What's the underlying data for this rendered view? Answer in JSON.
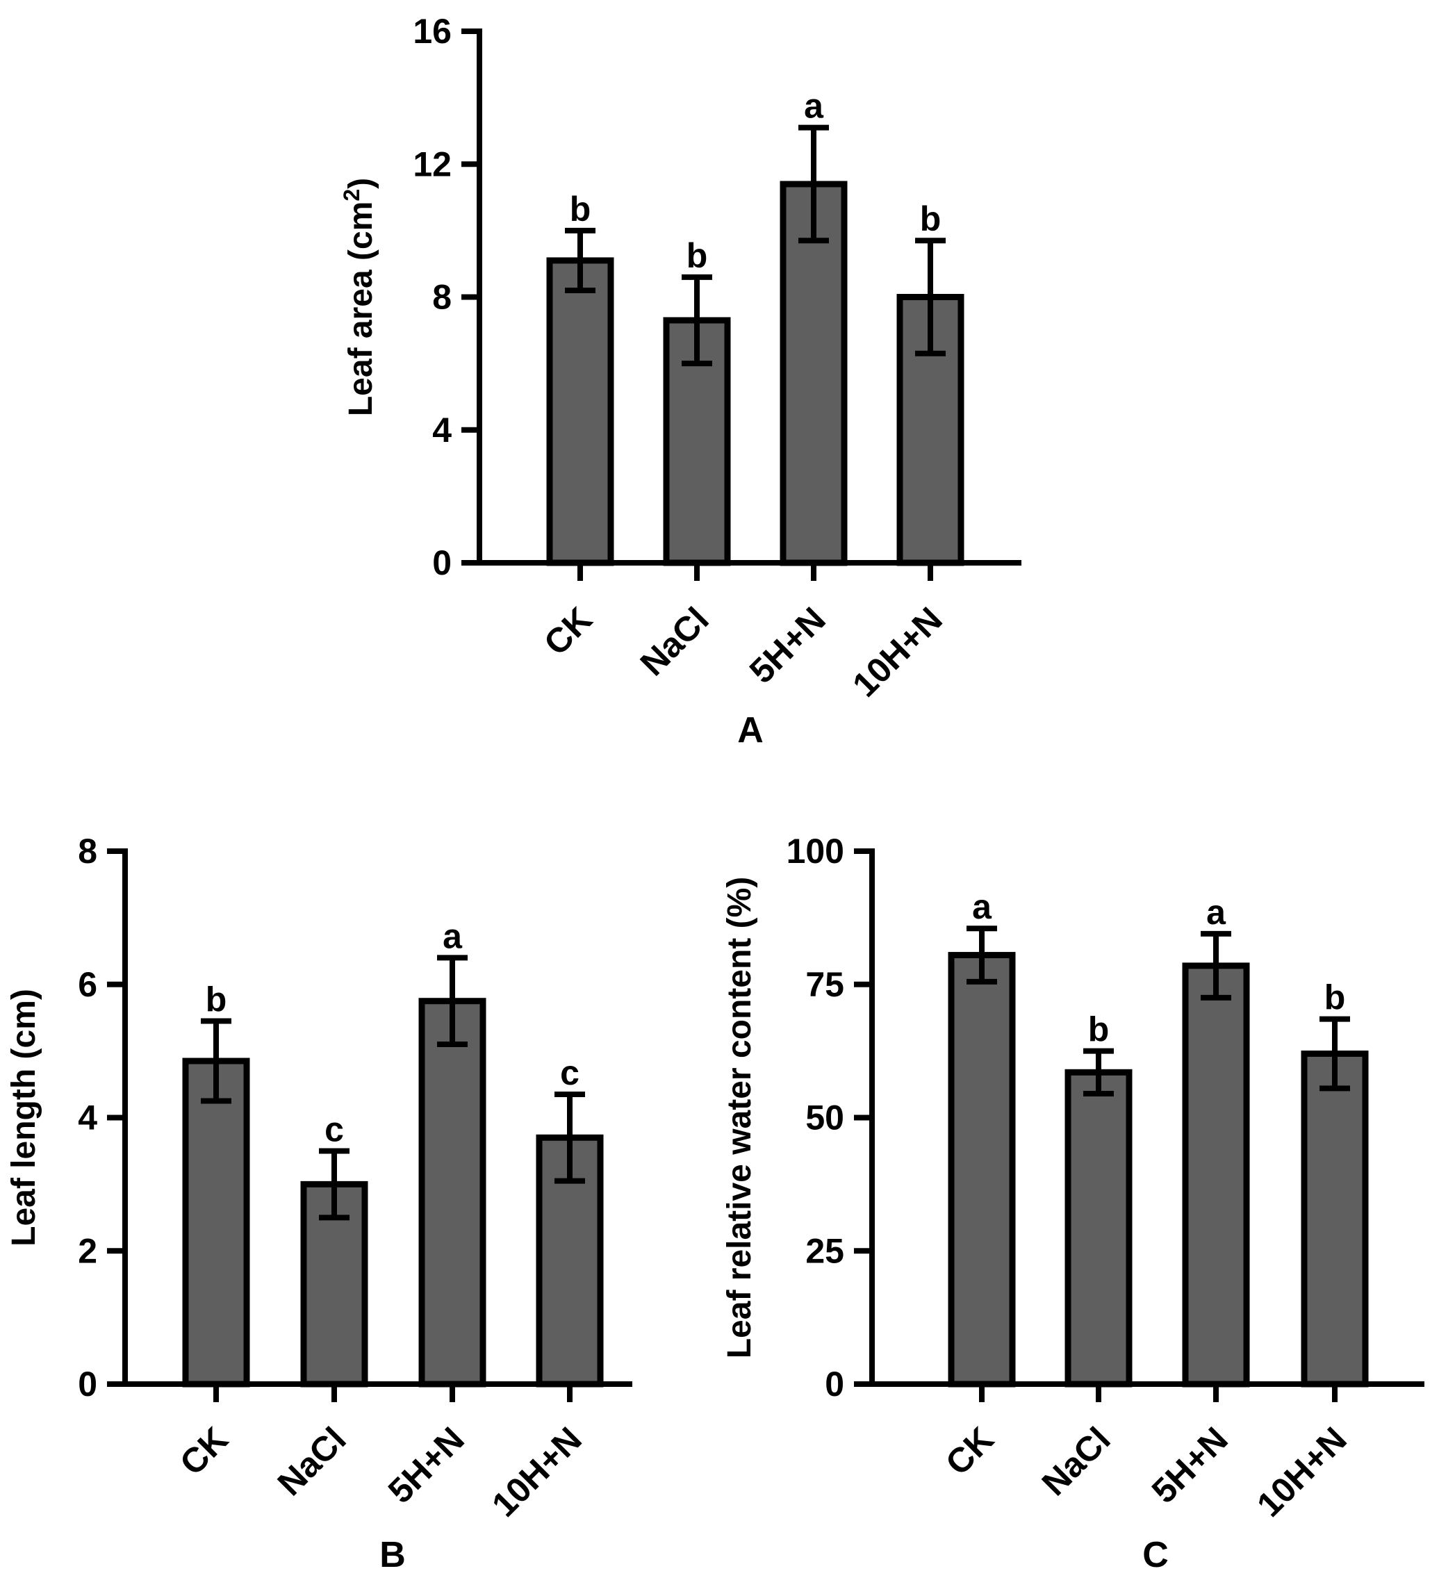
{
  "colors": {
    "bar_fill": "#5f5f5f",
    "bar_stroke": "#000000",
    "axis": "#000000",
    "background": "#ffffff"
  },
  "chart_data": [
    {
      "type": "bar",
      "panel_label": "A",
      "ylabel": "Leaf area (cm",
      "ylabel_sup": "2",
      "ylabel_close": ")",
      "categories": [
        "CK",
        "NaCl",
        "5H+N",
        "10H+N"
      ],
      "values": [
        9.1,
        7.3,
        11.4,
        8.0
      ],
      "errors": [
        0.9,
        1.3,
        1.7,
        1.7
      ],
      "letters": [
        "b",
        "b",
        "a",
        "b"
      ],
      "ylim": [
        0,
        16
      ],
      "yticks": [
        "0",
        "4",
        "8",
        "12",
        "16"
      ]
    },
    {
      "type": "bar",
      "panel_label": "B",
      "ylabel": "Leaf length (cm)",
      "categories": [
        "CK",
        "NaCl",
        "5H+N",
        "10H+N"
      ],
      "values": [
        4.85,
        3.0,
        5.75,
        3.7
      ],
      "errors": [
        0.6,
        0.5,
        0.65,
        0.65
      ],
      "letters": [
        "b",
        "c",
        "a",
        "c"
      ],
      "ylim": [
        0,
        8
      ],
      "yticks": [
        "0",
        "2",
        "4",
        "6",
        "8"
      ]
    },
    {
      "type": "bar",
      "panel_label": "C",
      "ylabel": "Leaf relative water content (%)",
      "categories": [
        "CK",
        "NaCl",
        "5H+N",
        "10H+N"
      ],
      "values": [
        80.5,
        58.5,
        78.5,
        62
      ],
      "errors": [
        5,
        4,
        6,
        6.5
      ],
      "letters": [
        "a",
        "b",
        "a",
        "b"
      ],
      "ylim": [
        0,
        100
      ],
      "yticks": [
        "0",
        "25",
        "50",
        "75",
        "100"
      ]
    }
  ]
}
